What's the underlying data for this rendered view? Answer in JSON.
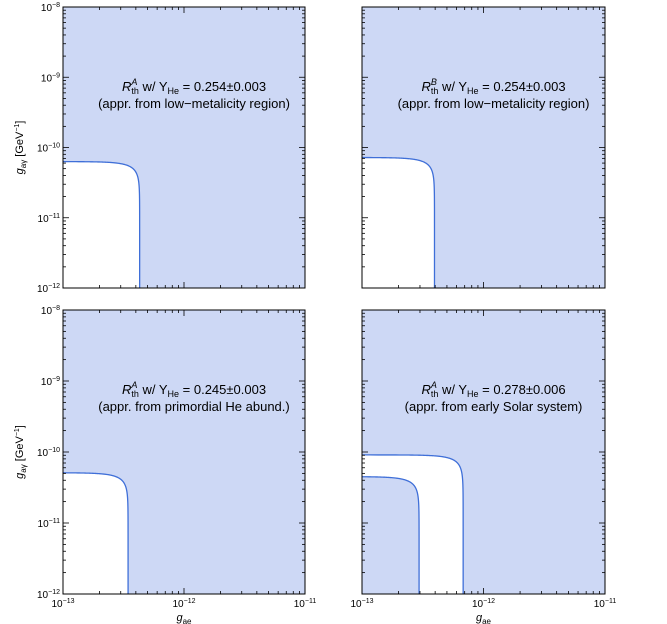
{
  "chart_data": [
    {
      "type": "area",
      "annotation": {
        "symbol": "R",
        "sub": "th",
        "sup": "A",
        "text": " w/ Y",
        "text_sub": "He",
        "value": " = 0.254±0.003",
        "line2": "(appr. from low−metalicity region)"
      },
      "x_scale": "log",
      "y_scale": "log",
      "xlim": [
        1e-13,
        1e-11
      ],
      "ylim": [
        1e-12,
        1e-08
      ],
      "shaded": "excluded",
      "curves": [
        {
          "g_ae_max": 4.3e-13,
          "g_agamma_max": 6.3e-11
        }
      ]
    },
    {
      "type": "area",
      "annotation": {
        "symbol": "R",
        "sub": "th",
        "sup": "B",
        "text": " w/ Y",
        "text_sub": "He",
        "value": " = 0.254±0.003",
        "line2": "(appr. from low−metalicity region)"
      },
      "x_scale": "log",
      "y_scale": "log",
      "xlim": [
        1e-13,
        1e-11
      ],
      "ylim": [
        1e-12,
        1e-08
      ],
      "shaded": "excluded",
      "curves": [
        {
          "g_ae_max": 3.95e-13,
          "g_agamma_max": 7.2e-11
        }
      ]
    },
    {
      "type": "area",
      "annotation": {
        "symbol": "R",
        "sub": "th",
        "sup": "A",
        "text": " w/ Y",
        "text_sub": "He",
        "value": " = 0.245±0.003",
        "line2": "(appr. from primordial He abund.)"
      },
      "x_scale": "log",
      "y_scale": "log",
      "xlim": [
        1e-13,
        1e-11
      ],
      "ylim": [
        1e-12,
        1e-08
      ],
      "shaded": "excluded",
      "curves": [
        {
          "g_ae_max": 3.45e-13,
          "g_agamma_max": 5.1e-11
        }
      ]
    },
    {
      "type": "area",
      "annotation": {
        "symbol": "R",
        "sub": "th",
        "sup": "A",
        "text": " w/ Y",
        "text_sub": "He",
        "value": " = 0.278±0.006",
        "line2": "(appr. from early Solar system)"
      },
      "x_scale": "log",
      "y_scale": "log",
      "xlim": [
        1e-13,
        1e-11
      ],
      "ylim": [
        1e-12,
        1e-08
      ],
      "shaded": "band",
      "curves": [
        {
          "g_ae_max": 6.8e-13,
          "g_agamma_max": 9.1e-11
        },
        {
          "g_ae_max": 2.95e-13,
          "g_agamma_max": 4.5e-11
        }
      ]
    }
  ],
  "axes": {
    "xlabel": {
      "main": "g",
      "sub": "ae"
    },
    "ylabel": {
      "main": "g",
      "sub": "aγ",
      "unit": " [GeV",
      "unit_sup": "−1",
      "unit_close": "]"
    },
    "x_ticks": [
      {
        "m": "10",
        "e": "−13"
      },
      {
        "m": "10",
        "e": "−12"
      },
      {
        "m": "10",
        "e": "−11"
      }
    ],
    "y_ticks": [
      {
        "m": "10",
        "e": "−12"
      },
      {
        "m": "10",
        "e": "−11"
      },
      {
        "m": "10",
        "e": "−10"
      },
      {
        "m": "10",
        "e": "−9"
      },
      {
        "m": "10",
        "e": "−8"
      }
    ]
  },
  "colors": {
    "fill": "#cdd8f5",
    "line": "#3f6fd8",
    "frame": "#000000"
  }
}
